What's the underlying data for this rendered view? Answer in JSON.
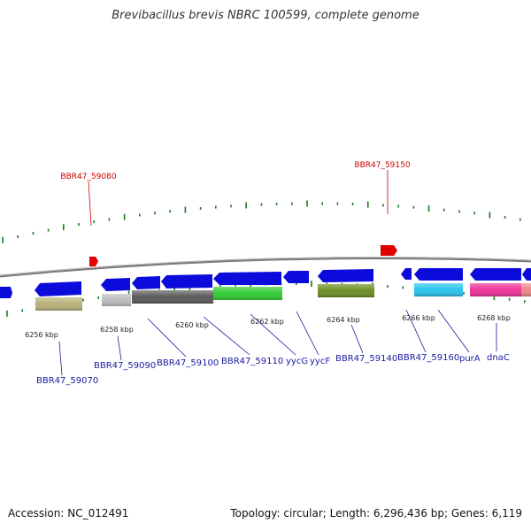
{
  "title": "Brevibacillus brevis NBRC 100599, complete genome",
  "accession": "Accession: NC_012491",
  "topology": "Topology: circular; Length: 6,296,436 bp; Genes: 6,119",
  "colors": {
    "backbone": "#888888",
    "gene_blue": "#0b0bdc",
    "tick": "#1c7a1c",
    "red_label": "#cc0000",
    "blue_label": "#1a1aa0"
  },
  "kbp_ticks": [
    "6256 kbp",
    "6258 kbp",
    "6260 kbp",
    "6262 kbp",
    "6264 kbp",
    "6266 kbp",
    "6268 kbp"
  ],
  "top_labels": [
    "BBR47_59080",
    "BBR47_59150"
  ],
  "bottom_labels": [
    "BBR47_59070",
    "BBR47_59090",
    "BBR47_59100",
    "BBR47_59110",
    "yycG",
    "yycF",
    "BBR47_59140",
    "BBR47_59160",
    "purA",
    "dnaC"
  ]
}
